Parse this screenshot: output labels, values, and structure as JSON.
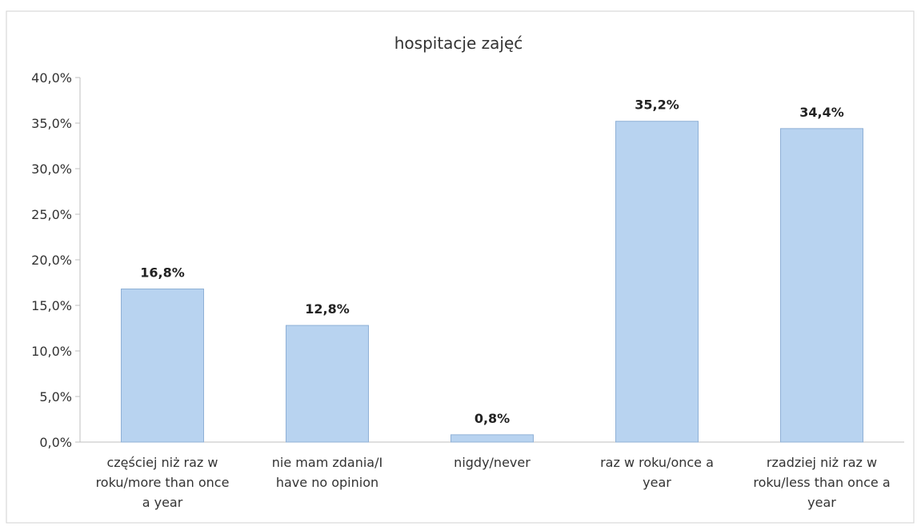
{
  "chart_data": {
    "type": "bar",
    "title": "hospitacje zajęć",
    "xlabel": "",
    "ylabel": "",
    "categories": [
      [
        "częściej niż raz w",
        "roku/more than once",
        "a year"
      ],
      [
        "nie mam zdania/I",
        "have no opinion"
      ],
      [
        "nigdy/never"
      ],
      [
        "raz w roku/once a",
        "year"
      ],
      [
        "rzadziej niż raz w",
        "roku/less than once a",
        "year"
      ]
    ],
    "values": [
      16.8,
      12.8,
      0.8,
      35.2,
      34.4
    ],
    "data_labels": [
      "16,8%",
      "12,8%",
      "0,8%",
      "35,2%",
      "34,4%"
    ],
    "y_ticks": [
      0,
      5,
      10,
      15,
      20,
      25,
      30,
      35,
      40
    ],
    "y_tick_labels": [
      "0,0%",
      "5,0%",
      "10,0%",
      "15,0%",
      "20,0%",
      "25,0%",
      "30,0%",
      "35,0%",
      "40,0%"
    ],
    "ylim": [
      0,
      40
    ],
    "grid": false,
    "legend": "none",
    "colors": {
      "bar_fill": "#b8d3f0",
      "bar_stroke": "#8fb0d6",
      "axis": "#bfbfbf",
      "frame": "#d0d0d0"
    }
  }
}
